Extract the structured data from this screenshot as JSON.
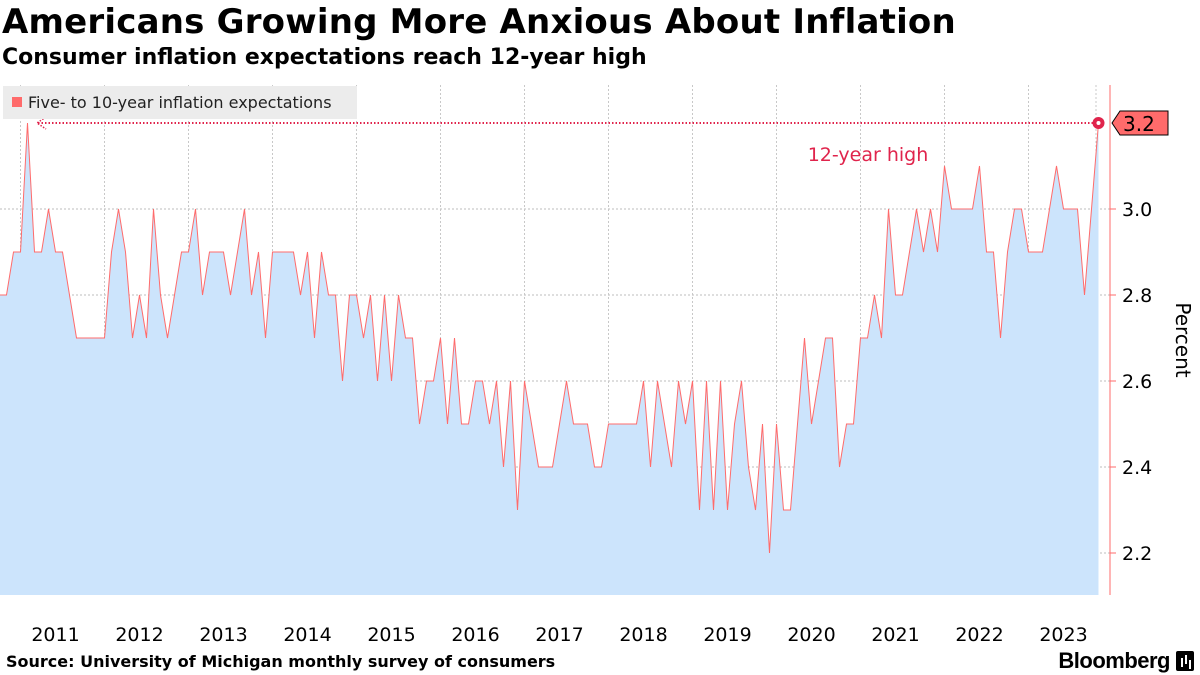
{
  "header": {
    "title": "Americans Growing More Anxious About Inflation",
    "subtitle": "Consumer inflation expectations reach 12-year high"
  },
  "footer": {
    "source": "Source: University of Michigan monthly survey of consumers",
    "brand": "Bloomberg"
  },
  "chart_data": {
    "type": "area",
    "title": "Americans Growing More Anxious About Inflation",
    "subtitle": "Consumer inflation expectations reach 12-year high",
    "xlabel": "",
    "ylabel": "Percent",
    "ylim": [
      2.1,
      3.3
    ],
    "yticks": [
      2.2,
      2.4,
      2.6,
      2.8,
      3.0
    ],
    "ytick_labels": [
      "2.2",
      "2.4",
      "2.6",
      "2.8",
      "3.0"
    ],
    "xticks": [
      "2011",
      "2012",
      "2013",
      "2014",
      "2015",
      "2016",
      "2017",
      "2018",
      "2019",
      "2020",
      "2021",
      "2022",
      "2023"
    ],
    "grid": true,
    "legend": {
      "position": "top-left",
      "entries": [
        {
          "name": "Five- to 10-year inflation expectations",
          "color": "#ff6b6b"
        }
      ]
    },
    "start": "2010-11",
    "series": [
      {
        "name": "Five- to 10-year inflation expectations",
        "values": [
          2.8,
          2.9,
          2.9,
          3.2,
          2.9,
          2.9,
          3.0,
          2.9,
          2.9,
          2.8,
          2.7,
          2.7,
          2.7,
          2.7,
          2.7,
          2.9,
          3.0,
          2.9,
          2.7,
          2.8,
          2.7,
          3.0,
          2.8,
          2.7,
          2.8,
          2.9,
          2.9,
          3.0,
          2.8,
          2.9,
          2.9,
          2.9,
          2.8,
          2.9,
          3.0,
          2.8,
          2.9,
          2.7,
          2.9,
          2.9,
          2.9,
          2.9,
          2.8,
          2.9,
          2.7,
          2.9,
          2.8,
          2.8,
          2.6,
          2.8,
          2.8,
          2.7,
          2.8,
          2.6,
          2.8,
          2.6,
          2.8,
          2.7,
          2.7,
          2.5,
          2.6,
          2.6,
          2.7,
          2.5,
          2.7,
          2.5,
          2.5,
          2.6,
          2.6,
          2.5,
          2.6,
          2.4,
          2.6,
          2.3,
          2.6,
          2.5,
          2.4,
          2.4,
          2.4,
          2.5,
          2.6,
          2.5,
          2.5,
          2.5,
          2.4,
          2.4,
          2.5,
          2.5,
          2.5,
          2.5,
          2.5,
          2.6,
          2.4,
          2.6,
          2.5,
          2.4,
          2.6,
          2.5,
          2.6,
          2.3,
          2.6,
          2.3,
          2.6,
          2.3,
          2.5,
          2.6,
          2.4,
          2.3,
          2.5,
          2.2,
          2.5,
          2.3,
          2.3,
          2.5,
          2.7,
          2.5,
          2.6,
          2.7,
          2.7,
          2.4,
          2.5,
          2.5,
          2.7,
          2.7,
          2.8,
          2.7,
          3.0,
          2.8,
          2.8,
          2.9,
          3.0,
          2.9,
          3.0,
          2.9,
          3.1,
          3.0,
          3.0,
          3.0,
          3.0,
          3.1,
          2.9,
          2.9,
          2.7,
          2.9,
          3.0,
          3.0,
          2.9,
          2.9,
          2.9,
          3.0,
          3.1,
          3.0,
          3.0,
          3.0,
          2.8,
          3.0,
          3.2
        ]
      }
    ],
    "annotations": [
      {
        "text": "12-year high",
        "color": "#e0244c"
      },
      {
        "text": "3.2",
        "type": "latest-value-tag",
        "color": "#ff6b6b"
      }
    ],
    "colors": {
      "fill": "#cce4fc",
      "line": "#ff6b6b",
      "annotation": "#e0244c"
    }
  }
}
